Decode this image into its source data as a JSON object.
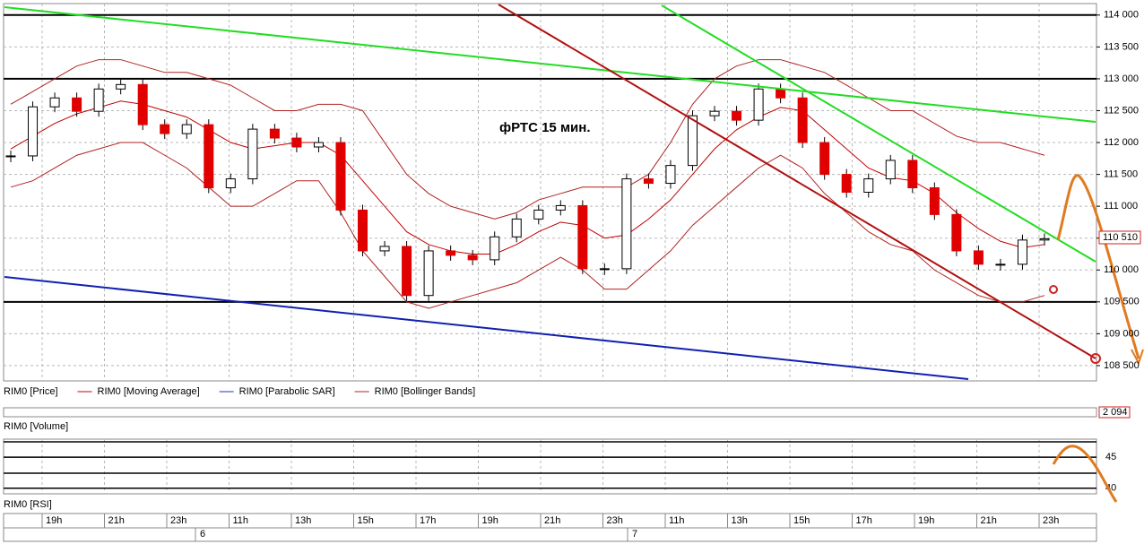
{
  "chart_data": {
    "type": "candlestick",
    "annotation": "фРТС   15 мин.",
    "ylim": [
      108260,
      114180
    ],
    "yticks": [
      {
        "value": 114000,
        "label": "114 000"
      },
      {
        "value": 113500,
        "label": "113 500"
      },
      {
        "value": 113000,
        "label": "113 000"
      },
      {
        "value": 112500,
        "label": "112 500"
      },
      {
        "value": 112000,
        "label": "112 000"
      },
      {
        "value": 111500,
        "label": "111 500"
      },
      {
        "value": 111000,
        "label": "111 000"
      },
      {
        "value": 110500,
        "label": "110 500"
      },
      {
        "value": 110000,
        "label": "110 000"
      },
      {
        "value": 109500,
        "label": "109 500"
      },
      {
        "value": 109000,
        "label": "109 000"
      },
      {
        "value": 108500,
        "label": "108 500"
      }
    ],
    "levels": [
      114000,
      113000,
      109500
    ],
    "last_price": {
      "value": 110510,
      "label": "110 510"
    },
    "series": [
      {
        "name": "RIM0 [Price]",
        "color": "#e00000",
        "values": [
          111790,
          112560,
          112700,
          112490,
          112840,
          112910,
          112280,
          112140,
          112280,
          111290,
          111430,
          112210,
          112070,
          111930,
          112000,
          110940,
          110300,
          110370,
          109600,
          110300,
          110230,
          110160,
          110520,
          110800,
          110940,
          111010,
          110020,
          110020,
          111430,
          111360,
          111640,
          112420,
          112490,
          112350,
          112840,
          112700,
          112000,
          111500,
          111220,
          111430,
          111720,
          111290,
          110870,
          110300,
          110090,
          110090,
          110470,
          110490
        ]
      },
      {
        "name": "RIM0 [Moving Average]",
        "color": "#c00000",
        "values": [
          111900,
          112100,
          112300,
          112450,
          112550,
          112650,
          112600,
          112500,
          112400,
          112200,
          112000,
          111900,
          111950,
          112000,
          112000,
          111800,
          111400,
          111000,
          110600,
          110400,
          110300,
          110250,
          110250,
          110400,
          110600,
          110750,
          110700,
          110500,
          110550,
          110800,
          111100,
          111500,
          111900,
          112200,
          112400,
          112550,
          112500,
          112200,
          111900,
          111600,
          111450,
          111400,
          111200,
          110900,
          110650,
          110450,
          110350,
          110400
        ]
      },
      {
        "name": "RIM0 [Parabolic SAR]",
        "color": "#2030c0",
        "values": []
      },
      {
        "name": "RIM0 [Bollinger Bands]",
        "color": "#b02020",
        "upper": [
          112600,
          112800,
          113000,
          113200,
          113300,
          113300,
          113200,
          113100,
          113100,
          113000,
          112900,
          112700,
          112500,
          112500,
          112600,
          112600,
          112500,
          112000,
          111500,
          111200,
          111000,
          110900,
          110800,
          110900,
          111100,
          111200,
          111300,
          111300,
          111300,
          111500,
          112000,
          112600,
          113000,
          113200,
          113300,
          113300,
          113200,
          113100,
          112900,
          112700,
          112500,
          112500,
          112300,
          112100,
          112000,
          112000,
          111900,
          111800
        ],
        "lower": [
          111300,
          111400,
          111600,
          111800,
          111900,
          112000,
          112000,
          111800,
          111600,
          111300,
          111000,
          111000,
          111200,
          111400,
          111400,
          110900,
          110300,
          109900,
          109500,
          109400,
          109500,
          109600,
          109700,
          109800,
          110000,
          110200,
          110000,
          109700,
          109700,
          110000,
          110300,
          110700,
          111000,
          111300,
          111600,
          111800,
          111600,
          111200,
          110900,
          110600,
          110400,
          110300,
          110000,
          109800,
          109600,
          109500,
          109500,
          109600
        ]
      }
    ],
    "volume": {
      "title": "RIM0 [Volume]",
      "last": {
        "value": 2094,
        "label": "2 094"
      }
    },
    "rsi": {
      "title": "RIM0 [RSI]",
      "ylim": [
        39.1,
        47.9
      ],
      "yticks": [
        45,
        40
      ]
    },
    "time_labels": [
      "19h",
      "21h",
      "23h",
      "11h",
      "13h",
      "15h",
      "17h",
      "19h",
      "21h",
      "23h",
      "11h",
      "13h",
      "15h",
      "17h",
      "19h",
      "21h",
      "23h"
    ],
    "day_labels": [
      "6",
      "7"
    ]
  }
}
